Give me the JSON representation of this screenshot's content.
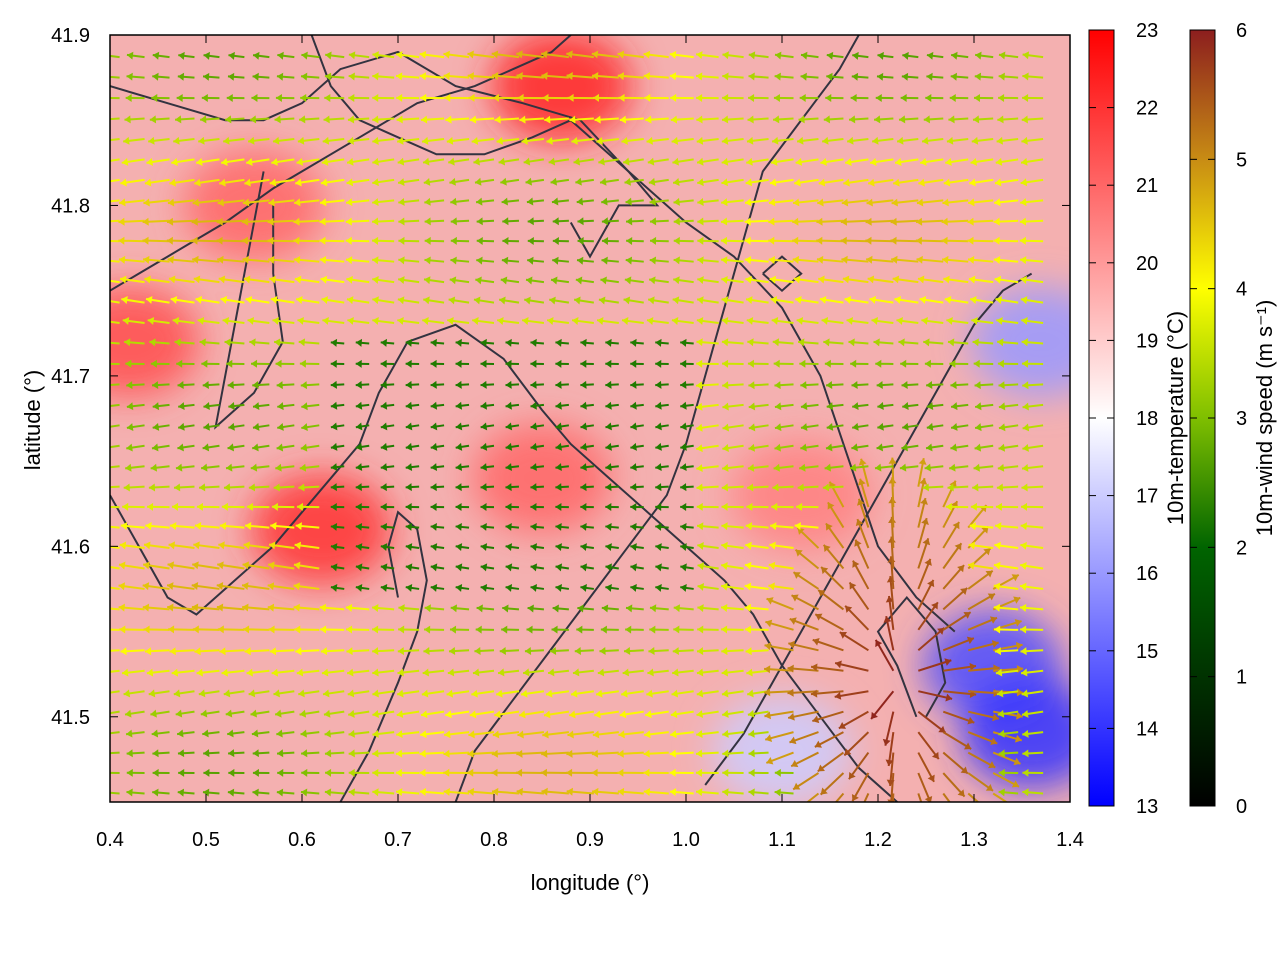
{
  "chart_data": {
    "type": "heatmap",
    "subtype": "vector-field-overlay",
    "xlabel": "longitude (°)",
    "ylabel": "latitude (°)",
    "xlim": [
      0.4,
      1.4
    ],
    "ylim": [
      41.45,
      41.9
    ],
    "x_ticks": [
      "0.4",
      "0.5",
      "0.6",
      "0.7",
      "0.8",
      "0.9",
      "1.0",
      "1.1",
      "1.2",
      "1.3",
      "1.4"
    ],
    "y_ticks": [
      "41.5",
      "41.6",
      "41.7",
      "41.8",
      "41.9"
    ],
    "temperature_colorbar": {
      "label": "10m-temperature (°C)",
      "range": [
        13,
        23
      ],
      "ticks": [
        "13",
        "14",
        "15",
        "16",
        "17",
        "18",
        "19",
        "20",
        "21",
        "22",
        "23"
      ],
      "colors": [
        "#0000ff",
        "#ffffff",
        "#ff0000"
      ]
    },
    "wind_colorbar": {
      "label": "10m-wind speed (m s⁻¹)",
      "range": [
        0,
        6
      ],
      "ticks": [
        "0",
        "1",
        "2",
        "3",
        "4",
        "5",
        "6"
      ],
      "colors": [
        "#000000",
        "#006400",
        "#7fbf00",
        "#ffff00",
        "#c88c14",
        "#8c1e1e"
      ]
    },
    "grid": false,
    "temperature_hotspots": [
      {
        "lon": 0.42,
        "lat": 41.72,
        "temp": 21.5
      },
      {
        "lon": 0.62,
        "lat": 41.61,
        "temp": 22.0
      },
      {
        "lon": 0.87,
        "lat": 41.87,
        "temp": 22.3
      },
      {
        "lon": 0.85,
        "lat": 41.64,
        "temp": 21.0
      },
      {
        "lon": 1.12,
        "lat": 41.63,
        "temp": 20.5
      },
      {
        "lon": 0.55,
        "lat": 41.8,
        "temp": 21.0
      },
      {
        "lon": 1.32,
        "lat": 41.53,
        "temp": 14.5
      },
      {
        "lon": 1.36,
        "lat": 41.49,
        "temp": 14.0
      },
      {
        "lon": 1.37,
        "lat": 41.72,
        "temp": 16.0
      },
      {
        "lon": 1.1,
        "lat": 41.48,
        "temp": 17.0
      }
    ],
    "wind_field_summary": [
      {
        "region": "west",
        "direction": "from east",
        "speed": 3.5
      },
      {
        "region": "center",
        "direction": "from east",
        "speed": 2.0
      },
      {
        "region": "southeast",
        "direction": "divergent outflow",
        "speed": 6.0
      }
    ],
    "contour_lines": [
      [
        [
          0.4,
          41.87
        ],
        [
          0.46,
          41.86
        ],
        [
          0.52,
          41.85
        ],
        [
          0.56,
          41.85
        ],
        [
          0.6,
          41.86
        ],
        [
          0.64,
          41.88
        ],
        [
          0.7,
          41.89
        ],
        [
          0.76,
          41.87
        ],
        [
          0.83,
          41.86
        ],
        [
          0.89,
          41.85
        ],
        [
          0.94,
          41.82
        ],
        [
          0.97,
          41.8
        ],
        [
          0.93,
          41.8
        ],
        [
          0.9,
          41.77
        ],
        [
          0.88,
          41.79
        ]
      ],
      [
        [
          0.4,
          41.75
        ],
        [
          0.43,
          41.76
        ],
        [
          0.46,
          41.77
        ],
        [
          0.49,
          41.78
        ],
        [
          0.52,
          41.79
        ],
        [
          0.57,
          41.81
        ],
        [
          0.6,
          41.82
        ],
        [
          0.66,
          41.84
        ],
        [
          0.72,
          41.86
        ],
        [
          0.78,
          41.87
        ],
        [
          0.82,
          41.88
        ],
        [
          0.86,
          41.89
        ],
        [
          0.88,
          41.9
        ]
      ],
      [
        [
          0.61,
          41.9
        ],
        [
          0.63,
          41.87
        ],
        [
          0.66,
          41.85
        ],
        [
          0.7,
          41.84
        ],
        [
          0.74,
          41.83
        ],
        [
          0.79,
          41.83
        ],
        [
          0.84,
          41.84
        ],
        [
          0.88,
          41.85
        ],
        [
          0.92,
          41.83
        ],
        [
          0.96,
          41.81
        ],
        [
          1.0,
          41.79
        ],
        [
          1.05,
          41.77
        ],
        [
          1.1,
          41.74
        ],
        [
          1.14,
          41.7
        ],
        [
          1.17,
          41.65
        ],
        [
          1.2,
          41.6
        ],
        [
          1.24,
          41.57
        ],
        [
          1.28,
          41.55
        ]
      ],
      [
        [
          0.56,
          41.82
        ],
        [
          0.55,
          41.79
        ],
        [
          0.54,
          41.76
        ],
        [
          0.53,
          41.73
        ],
        [
          0.52,
          41.7
        ],
        [
          0.51,
          41.67
        ],
        [
          0.55,
          41.69
        ],
        [
          0.58,
          41.72
        ],
        [
          0.57,
          41.76
        ],
        [
          0.57,
          41.8
        ]
      ],
      [
        [
          0.4,
          41.63
        ],
        [
          0.43,
          41.6
        ],
        [
          0.46,
          41.57
        ],
        [
          0.49,
          41.56
        ],
        [
          0.53,
          41.58
        ],
        [
          0.57,
          41.6
        ],
        [
          0.6,
          41.62
        ],
        [
          0.63,
          41.64
        ],
        [
          0.66,
          41.66
        ],
        [
          0.68,
          41.69
        ],
        [
          0.71,
          41.72
        ],
        [
          0.76,
          41.73
        ],
        [
          0.81,
          41.71
        ],
        [
          0.85,
          41.68
        ],
        [
          0.88,
          41.66
        ],
        [
          0.92,
          41.64
        ],
        [
          0.96,
          41.62
        ],
        [
          1.0,
          41.6
        ],
        [
          1.04,
          41.58
        ],
        [
          1.07,
          41.56
        ],
        [
          1.1,
          41.53
        ],
        [
          1.14,
          41.5
        ],
        [
          1.18,
          41.47
        ],
        [
          1.22,
          41.45
        ]
      ],
      [
        [
          0.64,
          41.45
        ],
        [
          0.67,
          41.48
        ],
        [
          0.7,
          41.52
        ],
        [
          0.72,
          41.55
        ],
        [
          0.73,
          41.58
        ],
        [
          0.72,
          41.61
        ],
        [
          0.7,
          41.62
        ],
        [
          0.69,
          41.6
        ],
        [
          0.7,
          41.57
        ]
      ],
      [
        [
          0.76,
          41.45
        ],
        [
          0.78,
          41.48
        ],
        [
          0.82,
          41.51
        ],
        [
          0.86,
          41.54
        ],
        [
          0.9,
          41.57
        ],
        [
          0.94,
          41.6
        ],
        [
          0.98,
          41.63
        ],
        [
          1.0,
          41.66
        ],
        [
          1.02,
          41.7
        ],
        [
          1.04,
          41.74
        ],
        [
          1.06,
          41.78
        ],
        [
          1.08,
          41.82
        ],
        [
          1.12,
          41.85
        ],
        [
          1.16,
          41.88
        ],
        [
          1.18,
          41.9
        ]
      ],
      [
        [
          1.24,
          41.5
        ],
        [
          1.22,
          41.53
        ],
        [
          1.2,
          41.55
        ],
        [
          1.23,
          41.57
        ],
        [
          1.26,
          41.55
        ],
        [
          1.27,
          41.52
        ],
        [
          1.25,
          41.5
        ]
      ],
      [
        [
          1.02,
          41.46
        ],
        [
          1.06,
          41.49
        ],
        [
          1.09,
          41.52
        ],
        [
          1.12,
          41.55
        ],
        [
          1.15,
          41.58
        ],
        [
          1.18,
          41.61
        ],
        [
          1.21,
          41.64
        ],
        [
          1.24,
          41.67
        ],
        [
          1.27,
          41.7
        ],
        [
          1.3,
          41.73
        ],
        [
          1.33,
          41.75
        ],
        [
          1.36,
          41.76
        ]
      ],
      [
        [
          1.08,
          41.76
        ],
        [
          1.1,
          41.77
        ],
        [
          1.12,
          41.76
        ],
        [
          1.1,
          41.75
        ],
        [
          1.08,
          41.76
        ]
      ]
    ]
  }
}
